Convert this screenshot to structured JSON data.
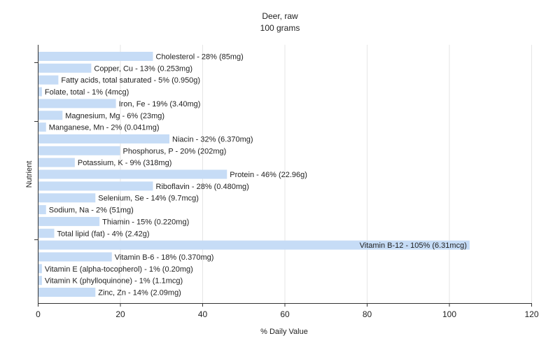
{
  "chart_data": {
    "type": "bar",
    "orientation": "horizontal",
    "title": "Deer, raw",
    "subtitle": "100 grams",
    "xlabel": "% Daily Value",
    "ylabel": "Nutrient",
    "xlim": [
      0,
      120
    ],
    "xticks": [
      0,
      20,
      40,
      60,
      80,
      100,
      120
    ],
    "grid": "vertical",
    "bar_color": "#c6dcf6",
    "categories": [
      "Cholesterol",
      "Copper, Cu",
      "Fatty acids, total saturated",
      "Folate, total",
      "Iron, Fe",
      "Magnesium, Mg",
      "Manganese, Mn",
      "Niacin",
      "Phosphorus, P",
      "Potassium, K",
      "Protein",
      "Riboflavin",
      "Selenium, Se",
      "Sodium, Na",
      "Thiamin",
      "Total lipid (fat)",
      "Vitamin B-12",
      "Vitamin B-6",
      "Vitamin E (alpha-tocopherol)",
      "Vitamin K (phylloquinone)",
      "Zinc, Zn"
    ],
    "values": [
      28,
      13,
      5,
      1,
      19,
      6,
      2,
      32,
      20,
      9,
      46,
      28,
      14,
      2,
      15,
      4,
      105,
      18,
      1,
      1,
      14
    ],
    "labels": [
      "Cholesterol - 28% (85mg)",
      "Copper, Cu - 13% (0.253mg)",
      "Fatty acids, total saturated - 5% (0.950g)",
      "Folate, total - 1% (4mcg)",
      "Iron, Fe - 19% (3.40mg)",
      "Magnesium, Mg - 6% (23mg)",
      "Manganese, Mn - 2% (0.041mg)",
      "Niacin - 32% (6.370mg)",
      "Phosphorus, P - 20% (202mg)",
      "Potassium, K - 9% (318mg)",
      "Protein - 46% (22.96g)",
      "Riboflavin - 28% (0.480mg)",
      "Selenium, Se - 14% (9.7mcg)",
      "Sodium, Na - 2% (51mg)",
      "Thiamin - 15% (0.220mg)",
      "Total lipid (fat) - 4% (2.42g)",
      "Vitamin B-12 - 105% (6.31mcg)",
      "Vitamin B-6 - 18% (0.370mg)",
      "Vitamin E (alpha-tocopherol) - 1% (0.20mg)",
      "Vitamin K (phylloquinone) - 1% (1.1mcg)",
      "Zinc, Zn - 14% (2.09mg)"
    ]
  }
}
